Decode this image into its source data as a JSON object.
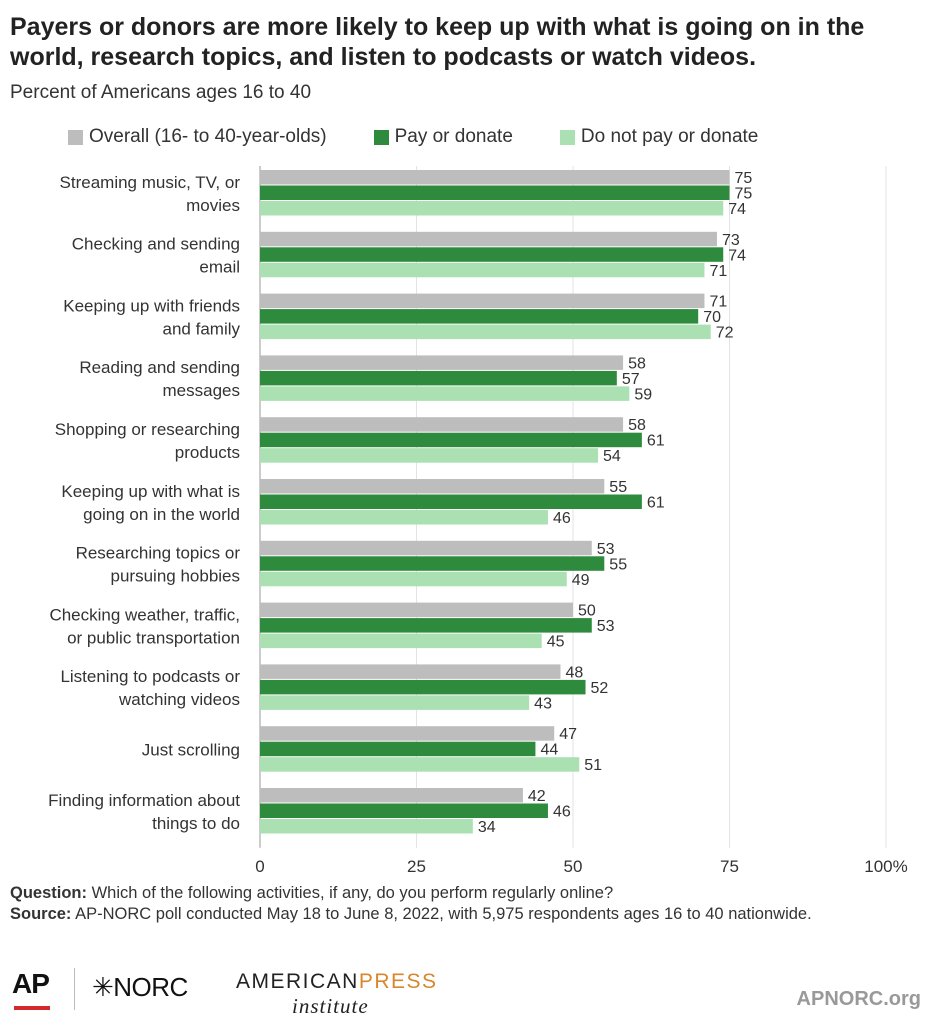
{
  "header": {
    "title": "Payers or donors are more likely to keep up with what is going on in the world, research topics, and listen to podcasts or watch videos.",
    "subtitle": "Percent of Americans ages 16 to 40"
  },
  "legend": [
    {
      "label": "Overall (16- to 40-year-olds)",
      "color": "#bdbdbd"
    },
    {
      "label": "Pay or donate",
      "color": "#2e8b3e"
    },
    {
      "label": "Do not pay or donate",
      "color": "#abe0b3"
    }
  ],
  "chart_data": {
    "type": "bar",
    "orientation": "horizontal",
    "categories": [
      [
        "Streaming music, TV, or",
        "movies"
      ],
      [
        "Checking and sending",
        "email"
      ],
      [
        "Keeping up with friends",
        "and family"
      ],
      [
        "Reading and sending",
        "messages"
      ],
      [
        "Shopping or researching",
        "products"
      ],
      [
        "Keeping up with what is",
        "going on in the world"
      ],
      [
        "Researching topics or",
        "pursuing hobbies"
      ],
      [
        "Checking weather, traffic,",
        "or public transportation"
      ],
      [
        "Listening to podcasts or",
        "watching videos"
      ],
      [
        "Just scrolling"
      ],
      [
        "Finding information about",
        "things to do"
      ]
    ],
    "series": [
      {
        "name": "Overall (16- to 40-year-olds)",
        "color": "#bdbdbd",
        "values": [
          75,
          73,
          71,
          58,
          58,
          55,
          53,
          50,
          48,
          47,
          42
        ]
      },
      {
        "name": "Pay or donate",
        "color": "#2e8b3e",
        "values": [
          75,
          74,
          70,
          57,
          61,
          61,
          55,
          53,
          52,
          44,
          46
        ]
      },
      {
        "name": "Do not pay or donate",
        "color": "#abe0b3",
        "values": [
          74,
          71,
          72,
          59,
          54,
          46,
          49,
          45,
          43,
          51,
          34
        ]
      }
    ],
    "xlim": [
      0,
      100
    ],
    "xticks": [
      "0",
      "25",
      "50",
      "75",
      "100%"
    ],
    "xtick_values": [
      0,
      25,
      50,
      75,
      100
    ],
    "grid": true,
    "legend_position": "top"
  },
  "notes": {
    "question_label": "Question:",
    "question_text": "Which of the following activities, if any, do you perform regularly online?",
    "source_label": "Source:",
    "source_text": "AP-NORC poll conducted May 18 to June 8, 2022, with 5,975 respondents ages 16 to 40 nationwide."
  },
  "footer": {
    "ap_logo": "AP",
    "norc_logo": "✳NORC",
    "api_logo_american": "AMERICAN",
    "api_logo_press": "PRESS",
    "api_logo_institute": "institute",
    "site": "APNORC.org"
  }
}
